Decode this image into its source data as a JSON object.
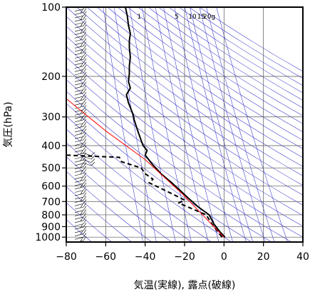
{
  "chart_data": {
    "type": "line",
    "chart_kind": "emagram",
    "xlabel": "気温(実線), 露点(破線)",
    "ylabel": "気圧(hPa)",
    "x_unit": "°C",
    "y_unit": "hPa",
    "xlim": [
      -80,
      40
    ],
    "ylim": [
      1050,
      100
    ],
    "y_scale": "log",
    "x_ticks": [
      -80,
      -60,
      -40,
      -20,
      0,
      20,
      40
    ],
    "y_ticks": [
      1000,
      900,
      800,
      700,
      600,
      500,
      400,
      300,
      200,
      100
    ],
    "grid": true,
    "mixing_ratio_labels": [
      "1",
      "5",
      "10",
      "15",
      "20g"
    ],
    "colors": {
      "temperature": "#000000",
      "dewpoint": "#000000",
      "parcel": "#ff0000",
      "background_lines": "#3333cc",
      "grid": "#000000"
    },
    "series": [
      {
        "style": "solid",
        "points": [
          {
            "x": 0.5,
            "y": 1000
          },
          {
            "x": -2,
            "y": 950
          },
          {
            "x": -5,
            "y": 880
          },
          {
            "x": -7.5,
            "y": 800
          },
          {
            "x": -13,
            "y": 740
          },
          {
            "x": -17,
            "y": 690
          },
          {
            "x": -22,
            "y": 630
          },
          {
            "x": -26.5,
            "y": 580
          },
          {
            "x": -32,
            "y": 530
          },
          {
            "x": -36.5,
            "y": 480
          },
          {
            "x": -40,
            "y": 440
          },
          {
            "x": -39,
            "y": 420
          },
          {
            "x": -41,
            "y": 400
          },
          {
            "x": -42,
            "y": 380
          },
          {
            "x": -43,
            "y": 360
          },
          {
            "x": -44,
            "y": 340
          },
          {
            "x": -45.5,
            "y": 310
          },
          {
            "x": -46,
            "y": 295
          },
          {
            "x": -47,
            "y": 280
          },
          {
            "x": -48.5,
            "y": 260
          },
          {
            "x": -49.5,
            "y": 240
          },
          {
            "x": -47.5,
            "y": 225
          },
          {
            "x": -48.5,
            "y": 210
          },
          {
            "x": -48,
            "y": 195
          },
          {
            "x": -48,
            "y": 180
          },
          {
            "x": -47.5,
            "y": 165
          },
          {
            "x": -48,
            "y": 150
          },
          {
            "x": -48,
            "y": 140
          },
          {
            "x": -47.5,
            "y": 130
          },
          {
            "x": -48.5,
            "y": 120
          },
          {
            "x": -49,
            "y": 110
          },
          {
            "x": -50,
            "y": 100
          }
        ]
      },
      {
        "style": "dashed",
        "points": [
          {
            "x": -1,
            "y": 1000
          },
          {
            "x": -3,
            "y": 950
          },
          {
            "x": -6,
            "y": 880
          },
          {
            "x": -9,
            "y": 800
          },
          {
            "x": -15,
            "y": 760
          },
          {
            "x": -23,
            "y": 710
          },
          {
            "x": -20,
            "y": 690
          },
          {
            "x": -26,
            "y": 650
          },
          {
            "x": -38,
            "y": 580
          },
          {
            "x": -36,
            "y": 560
          },
          {
            "x": -40,
            "y": 530
          },
          {
            "x": -42,
            "y": 500
          },
          {
            "x": -52,
            "y": 470
          },
          {
            "x": -53,
            "y": 450
          },
          {
            "x": -80,
            "y": 440
          }
        ]
      },
      {
        "style": "solid-red",
        "points": [
          {
            "x": 0,
            "y": 1000
          },
          {
            "x": -21,
            "y": 650
          },
          {
            "x": -40,
            "y": 460
          },
          {
            "x": -60,
            "y": 345
          },
          {
            "x": -80,
            "y": 250
          }
        ]
      }
    ],
    "wind_barbs": true
  }
}
